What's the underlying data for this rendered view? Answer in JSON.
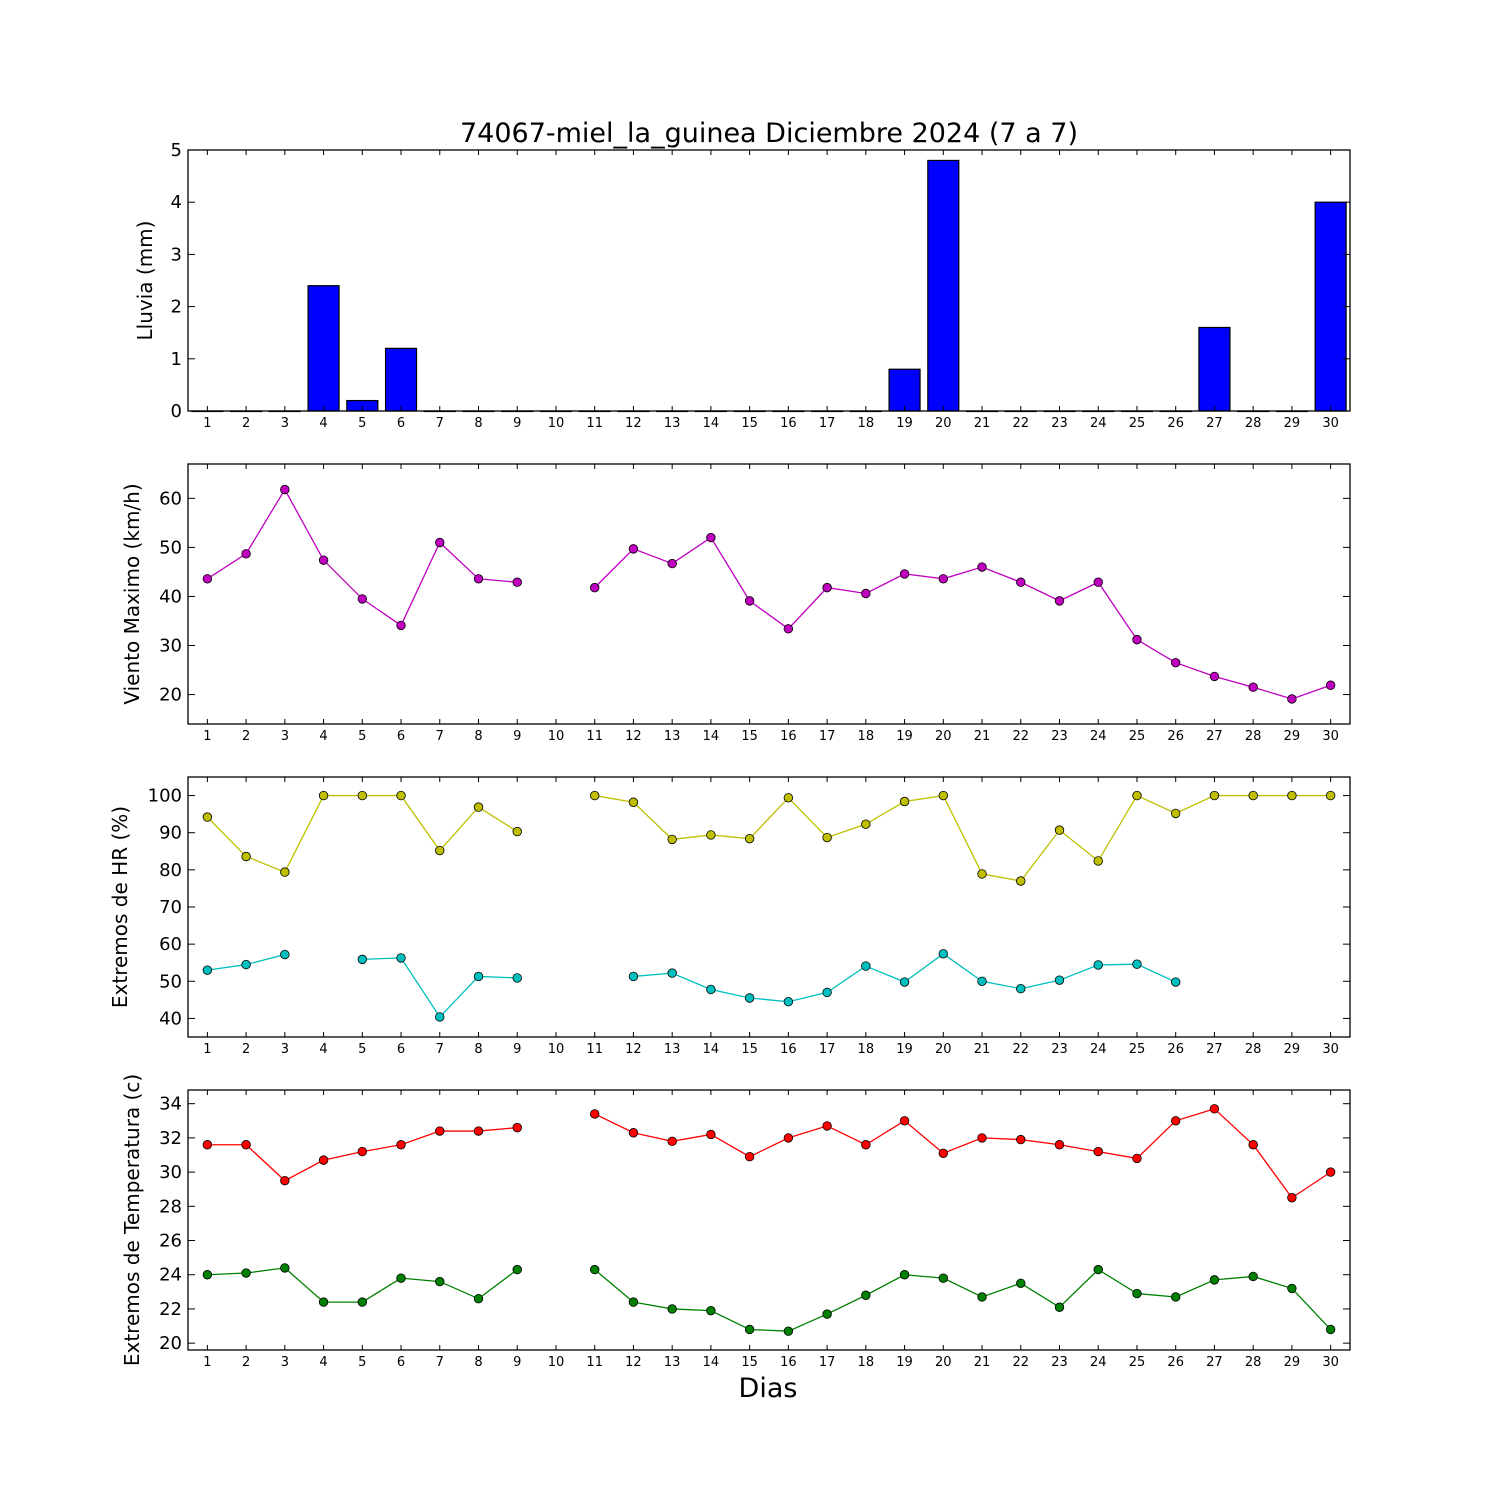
{
  "title": "74067-miel_la_guinea Diciembre 2024  (7 a 7)",
  "xlabel": "Dias",
  "days": [
    1,
    2,
    3,
    4,
    5,
    6,
    7,
    8,
    9,
    10,
    11,
    12,
    13,
    14,
    15,
    16,
    17,
    18,
    19,
    20,
    21,
    22,
    23,
    24,
    25,
    26,
    27,
    28,
    29,
    30
  ],
  "chart_data": [
    {
      "type": "bar",
      "ylabel": "Lluvia (mm)",
      "ylim": [
        0,
        5
      ],
      "yticks": [
        0,
        1,
        2,
        3,
        4,
        5
      ],
      "grid": false,
      "series": [
        {
          "color": "#0000ff",
          "values": [
            0,
            0,
            0,
            2.4,
            0.2,
            1.2,
            0,
            0,
            0,
            0,
            0,
            0,
            0,
            0,
            0,
            0,
            0,
            0,
            0.8,
            4.8,
            0,
            0,
            0,
            0,
            0,
            0,
            1.6,
            0,
            0,
            4.0
          ]
        }
      ]
    },
    {
      "type": "line",
      "ylabel": "Viento Maximo (km/h)",
      "ylim": [
        14,
        67
      ],
      "yticks": [
        20,
        30,
        40,
        50,
        60
      ],
      "grid": false,
      "series": [
        {
          "color": "#bf00bf",
          "values": [
            43.6,
            48.7,
            61.8,
            47.4,
            39.5,
            34.1,
            51.0,
            43.6,
            42.9,
            null,
            41.8,
            49.7,
            46.7,
            52.0,
            39.1,
            33.4,
            41.8,
            40.6,
            44.6,
            43.6,
            46.0,
            42.9,
            39.1,
            42.9,
            31.2,
            26.5,
            23.7,
            21.5,
            19.1,
            21.9
          ]
        }
      ]
    },
    {
      "type": "line",
      "ylabel": "Extremos de HR (%)",
      "ylim": [
        35,
        105
      ],
      "yticks": [
        40,
        50,
        60,
        70,
        80,
        90,
        100
      ],
      "grid": false,
      "series": [
        {
          "color": "#bfbf00",
          "values": [
            94.2,
            83.6,
            79.4,
            100,
            100,
            100,
            85.2,
            96.9,
            90.3,
            null,
            100,
            98.2,
            88.2,
            89.4,
            88.4,
            99.4,
            88.7,
            92.3,
            98.4,
            100,
            78.9,
            77.0,
            90.7,
            82.4,
            100,
            95.2,
            100,
            100,
            100,
            100
          ]
        },
        {
          "color": "#00bfbf",
          "values": [
            53.0,
            54.5,
            57.2,
            null,
            55.9,
            56.3,
            40.4,
            51.3,
            50.9,
            null,
            null,
            51.3,
            52.2,
            47.8,
            45.5,
            44.5,
            47.0,
            54.1,
            49.8,
            57.4,
            50.0,
            48.0,
            50.3,
            54.4,
            54.6,
            49.8,
            null,
            null,
            null,
            null
          ]
        }
      ]
    },
    {
      "type": "line",
      "ylabel": "Extremos de Temperatura (c)",
      "ylim": [
        19.6,
        34.8
      ],
      "yticks": [
        20,
        22,
        24,
        26,
        28,
        30,
        32,
        34
      ],
      "grid": false,
      "series": [
        {
          "color": "#ff0000",
          "values": [
            31.6,
            31.6,
            29.5,
            30.7,
            31.2,
            31.6,
            32.4,
            32.4,
            32.6,
            null,
            33.4,
            32.3,
            31.8,
            32.2,
            30.9,
            32.0,
            32.7,
            31.6,
            33.0,
            31.1,
            32.0,
            31.9,
            31.6,
            31.2,
            30.8,
            33.0,
            33.7,
            31.6,
            28.5,
            30.0
          ]
        },
        {
          "color": "#008000",
          "values": [
            24.0,
            24.1,
            24.4,
            22.4,
            22.4,
            23.8,
            23.6,
            22.6,
            24.3,
            null,
            24.3,
            22.4,
            22.0,
            21.9,
            20.8,
            20.7,
            21.7,
            22.8,
            24.0,
            23.8,
            22.7,
            23.5,
            22.1,
            24.3,
            22.9,
            22.7,
            23.7,
            23.9,
            23.2,
            20.8
          ]
        }
      ]
    }
  ]
}
